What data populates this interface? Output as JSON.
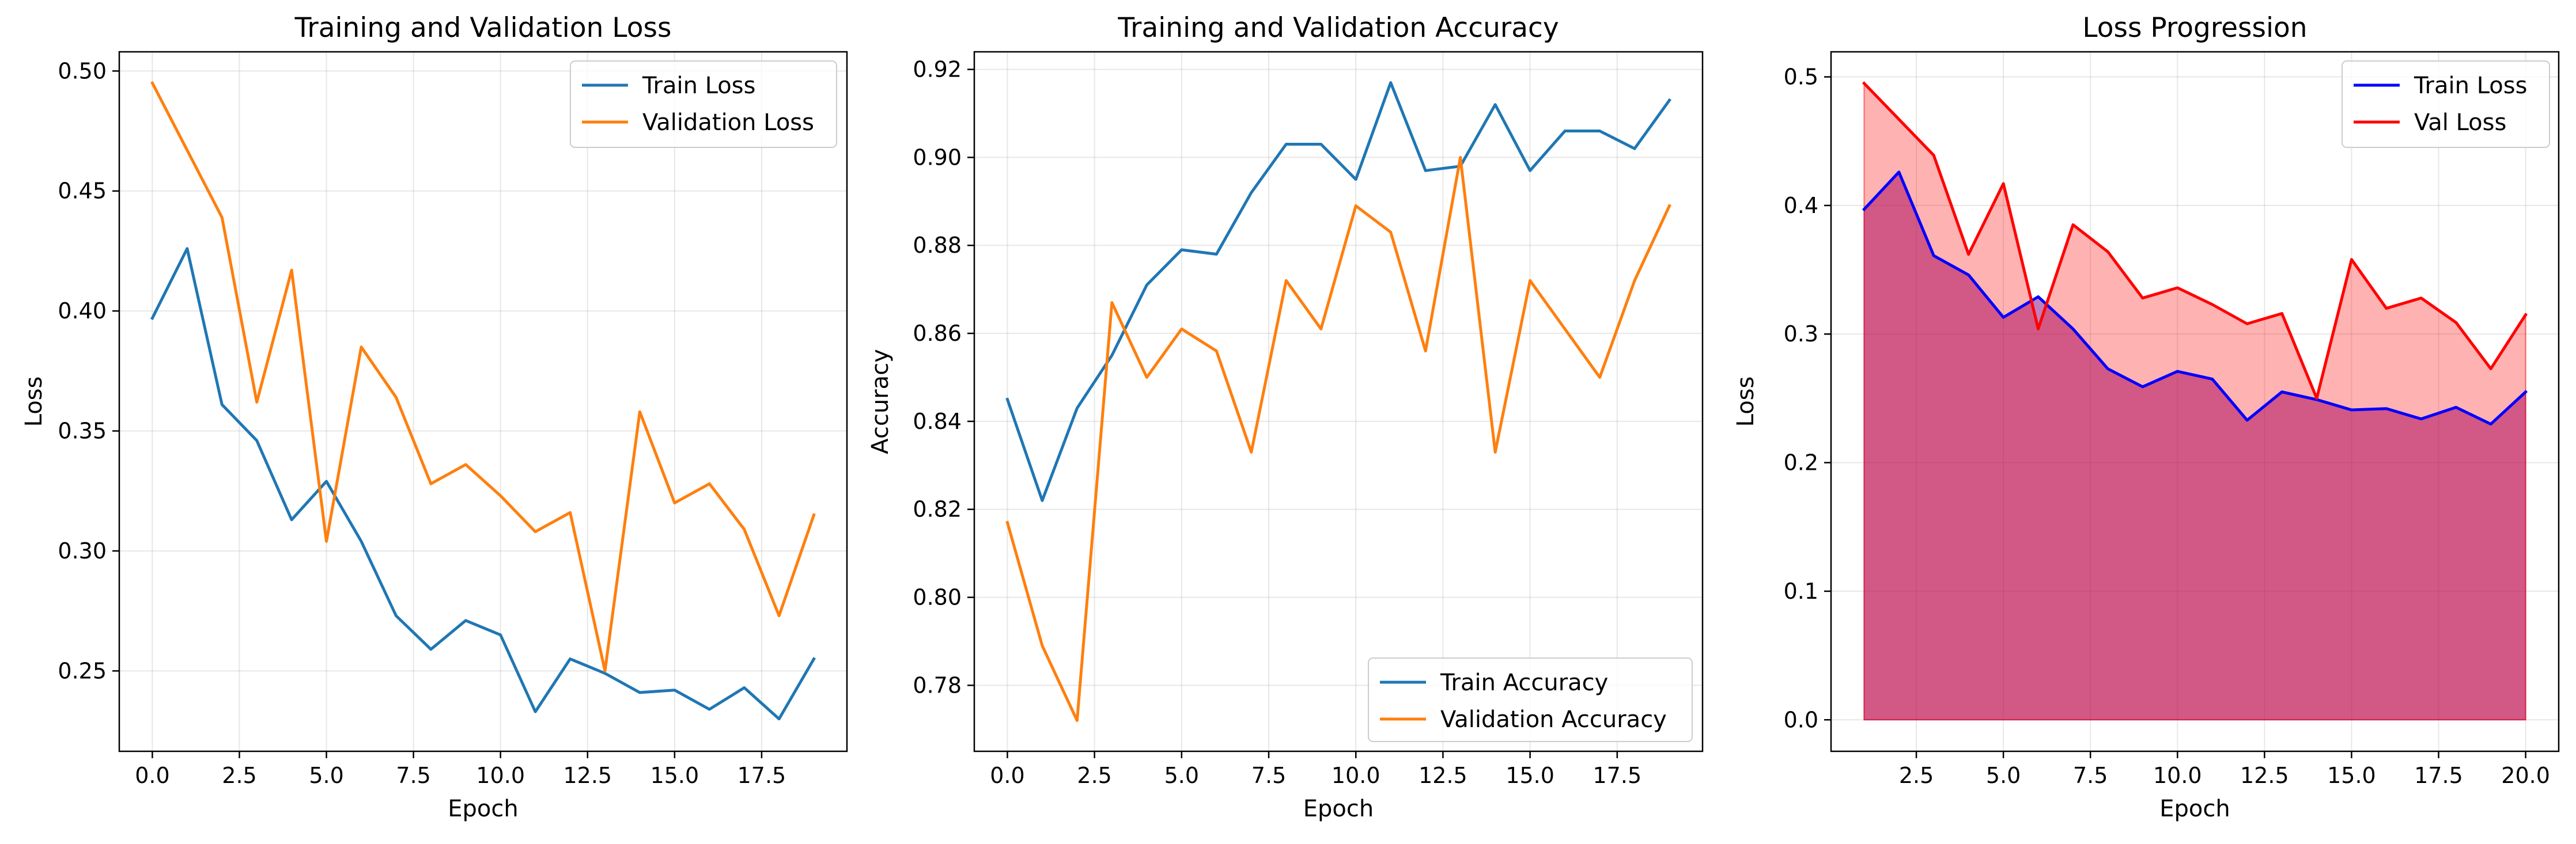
{
  "chart_data": [
    {
      "type": "line",
      "title": "Training and Validation Loss",
      "xlabel": "Epoch",
      "ylabel": "Loss",
      "x": [
        0,
        1,
        2,
        3,
        4,
        5,
        6,
        7,
        8,
        9,
        10,
        11,
        12,
        13,
        14,
        15,
        16,
        17,
        18,
        19
      ],
      "xlim": [
        -0.95,
        19.95
      ],
      "ylim": [
        0.2165,
        0.508
      ],
      "xticks": [
        0.0,
        2.5,
        5.0,
        7.5,
        10.0,
        12.5,
        15.0,
        17.5
      ],
      "xtick_labels": [
        "0.0",
        "2.5",
        "5.0",
        "7.5",
        "10.0",
        "12.5",
        "15.0",
        "17.5"
      ],
      "yticks": [
        0.25,
        0.3,
        0.35,
        0.4,
        0.45,
        0.5
      ],
      "ytick_labels": [
        "0.25",
        "0.30",
        "0.35",
        "0.40",
        "0.45",
        "0.50"
      ],
      "grid": true,
      "legend": "top-right",
      "series": [
        {
          "name": "Train Loss",
          "color": "#1f77b4",
          "values": [
            0.397,
            0.426,
            0.361,
            0.346,
            0.313,
            0.329,
            0.304,
            0.273,
            0.259,
            0.271,
            0.265,
            0.233,
            0.255,
            0.249,
            0.241,
            0.242,
            0.234,
            0.243,
            0.23,
            0.255
          ]
        },
        {
          "name": "Validation Loss",
          "color": "#ff7f0e",
          "values": [
            0.495,
            0.467,
            0.439,
            0.362,
            0.417,
            0.304,
            0.385,
            0.364,
            0.328,
            0.336,
            0.323,
            0.308,
            0.316,
            0.25,
            0.358,
            0.32,
            0.328,
            0.309,
            0.273,
            0.315
          ]
        }
      ]
    },
    {
      "type": "line",
      "title": "Training and Validation Accuracy",
      "xlabel": "Epoch",
      "ylabel": "Accuracy",
      "x": [
        0,
        1,
        2,
        3,
        4,
        5,
        6,
        7,
        8,
        9,
        10,
        11,
        12,
        13,
        14,
        15,
        16,
        17,
        18,
        19
      ],
      "xlim": [
        -0.95,
        19.95
      ],
      "ylim": [
        0.765,
        0.924
      ],
      "xticks": [
        0.0,
        2.5,
        5.0,
        7.5,
        10.0,
        12.5,
        15.0,
        17.5
      ],
      "xtick_labels": [
        "0.0",
        "2.5",
        "5.0",
        "7.5",
        "10.0",
        "12.5",
        "15.0",
        "17.5"
      ],
      "yticks": [
        0.78,
        0.8,
        0.82,
        0.84,
        0.86,
        0.88,
        0.9,
        0.92
      ],
      "ytick_labels": [
        "0.78",
        "0.80",
        "0.82",
        "0.84",
        "0.86",
        "0.88",
        "0.90",
        "0.92"
      ],
      "grid": true,
      "legend": "bottom-right",
      "series": [
        {
          "name": "Train Accuracy",
          "color": "#1f77b4",
          "values": [
            0.845,
            0.822,
            0.843,
            0.855,
            0.871,
            0.879,
            0.878,
            0.892,
            0.903,
            0.903,
            0.895,
            0.917,
            0.897,
            0.898,
            0.912,
            0.897,
            0.906,
            0.906,
            0.902,
            0.913
          ]
        },
        {
          "name": "Validation Accuracy",
          "color": "#ff7f0e",
          "values": [
            0.817,
            0.789,
            0.772,
            0.867,
            0.85,
            0.861,
            0.856,
            0.833,
            0.872,
            0.861,
            0.889,
            0.883,
            0.856,
            0.9,
            0.833,
            0.872,
            0.861,
            0.85,
            0.872,
            0.889
          ]
        }
      ]
    },
    {
      "type": "area",
      "title": "Loss Progression",
      "xlabel": "Epoch",
      "ylabel": "Loss",
      "x": [
        1,
        2,
        3,
        4,
        5,
        6,
        7,
        8,
        9,
        10,
        11,
        12,
        13,
        14,
        15,
        16,
        17,
        18,
        19,
        20
      ],
      "xlim": [
        0.05,
        20.95
      ],
      "ylim": [
        -0.0245,
        0.5195
      ],
      "xticks": [
        2.5,
        5.0,
        7.5,
        10.0,
        12.5,
        15.0,
        17.5,
        20.0
      ],
      "xtick_labels": [
        "2.5",
        "5.0",
        "7.5",
        "10.0",
        "12.5",
        "15.0",
        "17.5",
        "20.0"
      ],
      "yticks": [
        0.0,
        0.1,
        0.2,
        0.3,
        0.4,
        0.5
      ],
      "ytick_labels": [
        "0.0",
        "0.1",
        "0.2",
        "0.3",
        "0.4",
        "0.5"
      ],
      "grid": true,
      "legend": "top-right",
      "series": [
        {
          "name": "Train Loss",
          "color": "#0000ff",
          "fill": "#800080",
          "values": [
            0.397,
            0.426,
            0.361,
            0.346,
            0.313,
            0.329,
            0.304,
            0.273,
            0.259,
            0.271,
            0.265,
            0.233,
            0.255,
            0.249,
            0.241,
            0.242,
            0.234,
            0.243,
            0.23,
            0.255
          ]
        },
        {
          "name": "Val Loss",
          "color": "#ff0000",
          "fill": "#ff0000",
          "values": [
            0.495,
            0.467,
            0.439,
            0.362,
            0.417,
            0.304,
            0.385,
            0.364,
            0.328,
            0.336,
            0.323,
            0.308,
            0.316,
            0.25,
            0.358,
            0.32,
            0.328,
            0.309,
            0.273,
            0.315
          ]
        }
      ]
    }
  ]
}
